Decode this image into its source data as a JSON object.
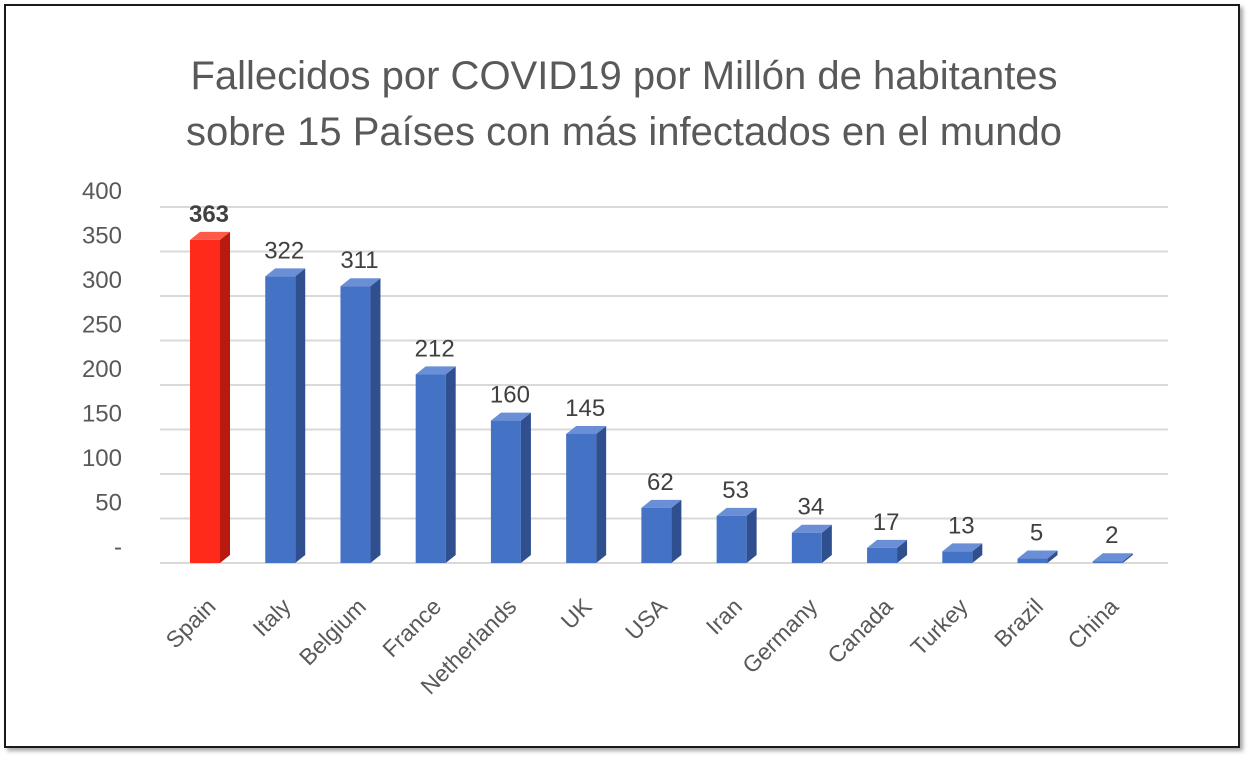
{
  "chart_data": {
    "type": "bar",
    "title": [
      "Fallecidos por COVID19 por Millón de habitantes",
      "sobre 15 Países con más infectados en el mundo"
    ],
    "categories": [
      "Spain",
      "Italy",
      "Belgium",
      "France",
      "Netherlands",
      "UK",
      "USA",
      "Iran",
      "Germany",
      "Canada",
      "Turkey",
      "Brazil",
      "China"
    ],
    "values": [
      363,
      322,
      311,
      212,
      160,
      145,
      62,
      53,
      34,
      17,
      13,
      5,
      2
    ],
    "data_labels": [
      "363",
      "322",
      "311",
      "212",
      "160",
      "145",
      "62",
      "53",
      "34",
      "17",
      "13",
      "5",
      "2"
    ],
    "y_tick_labels": [
      "-",
      "50",
      "100",
      "150",
      "200",
      "250",
      "300",
      "350",
      "400"
    ],
    "y_ticks": [
      0,
      50,
      100,
      150,
      200,
      250,
      300,
      350,
      400
    ],
    "ylim": [
      0,
      400
    ],
    "grid": true,
    "legend": "none",
    "highlight_index": 0,
    "colors": {
      "highlight": "#ff2a1a",
      "highlight_side": "#b81a10",
      "highlight_top": "#ff5a48",
      "bar": "#4472c4",
      "bar_side": "#2f4f8f",
      "bar_top": "#6b8fd6",
      "grid": "#d9d9d9",
      "text": "#595959"
    }
  }
}
